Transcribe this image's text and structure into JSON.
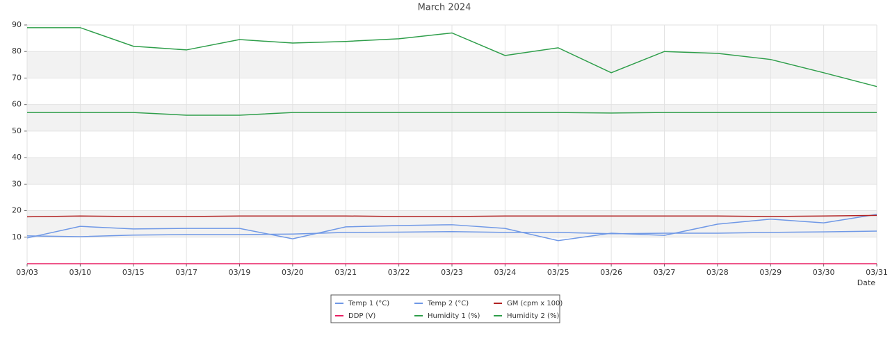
{
  "chart_data": {
    "type": "line",
    "title": "March 2024",
    "x_label": "Date",
    "categories": [
      "03/03",
      "03/10",
      "03/15",
      "03/17",
      "03/19",
      "03/20",
      "03/21",
      "03/22",
      "03/23",
      "03/24",
      "03/25",
      "03/26",
      "03/27",
      "03/28",
      "03/29",
      "03/30",
      "03/31"
    ],
    "ylim": [
      0,
      90
    ],
    "yticks": [
      10,
      20,
      30,
      40,
      50,
      60,
      70,
      80,
      90
    ],
    "grid": true,
    "series": [
      {
        "name": "Temp 1 (°C)",
        "color": "#6f98e6",
        "values": [
          10.5,
          10.2,
          10.8,
          11,
          11,
          11.2,
          11.8,
          11.9,
          12.1,
          11.8,
          11.8,
          11.3,
          11.5,
          11.5,
          11.8,
          12,
          12.3
        ]
      },
      {
        "name": "Temp 2 (°C)",
        "color": "#6f98e6",
        "values": [
          9.7,
          14.1,
          13.1,
          13.3,
          13.3,
          9.4,
          13.9,
          14.4,
          14.7,
          13.3,
          8.7,
          11.5,
          10.7,
          14.9,
          16.8,
          15.4,
          18.6
        ]
      },
      {
        "name": "GM (cpm x 100)",
        "color": "#b22222",
        "values": [
          17.7,
          18,
          17.8,
          17.8,
          18,
          18,
          18,
          17.8,
          17.8,
          18,
          18,
          18,
          18,
          18,
          17.8,
          18,
          18.2
        ]
      },
      {
        "name": "DDP (V)",
        "color": "#e91e63",
        "values": [
          0,
          0,
          0,
          0,
          0,
          0,
          0,
          0,
          0,
          0,
          0,
          0,
          0,
          0,
          0,
          0,
          0
        ]
      },
      {
        "name": "Humidity 1 (%)",
        "color": "#2e9e4a",
        "values": [
          89,
          89,
          82,
          80.6,
          84.5,
          83.2,
          83.8,
          84.8,
          87,
          78.5,
          81.4,
          72,
          80,
          79.3,
          77,
          72,
          66.8
        ]
      },
      {
        "name": "Humidity 2 (%)",
        "color": "#2e9e4a",
        "values": [
          57,
          57,
          57,
          56,
          56,
          57,
          57,
          57,
          57,
          57,
          57,
          56.8,
          57,
          57,
          57,
          57,
          57
        ]
      }
    ]
  }
}
